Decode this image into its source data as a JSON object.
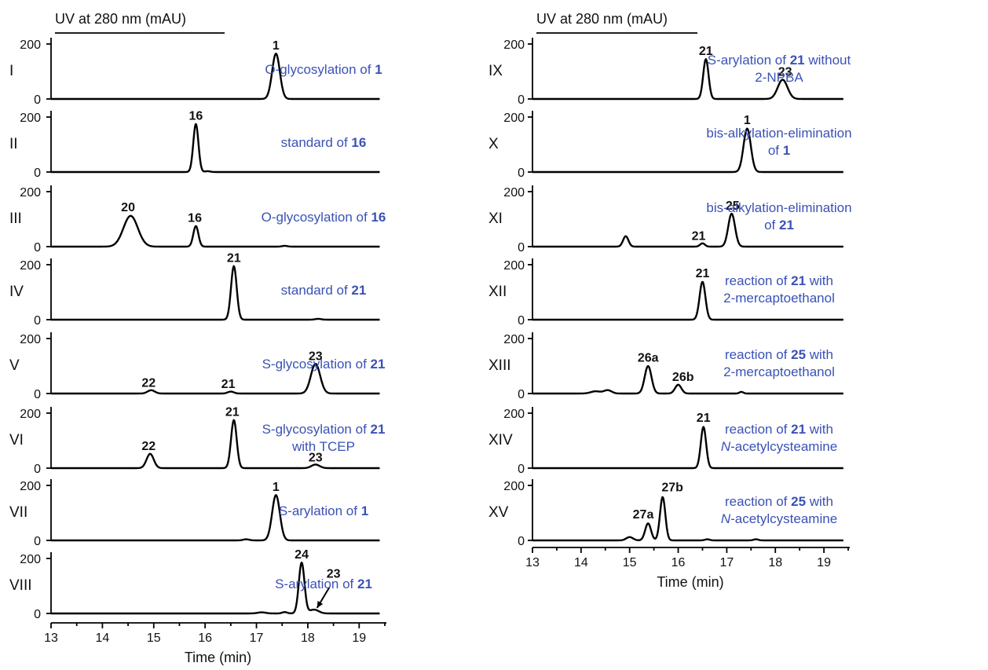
{
  "chart_data": [
    {
      "type": "line",
      "column": "left",
      "header": "UV at 280 nm (mAU)",
      "xlabel": "Time (min)",
      "xlim": [
        13,
        19.5
      ],
      "x_ticks": [
        "13",
        "14",
        "15",
        "16",
        "17",
        "18",
        "19"
      ],
      "ylim": [
        0,
        200
      ],
      "y_ticks": [
        "0",
        "200"
      ],
      "panels": [
        {
          "id": "I",
          "description": [
            {
              "t": "O-glycosylation of "
            },
            {
              "t": "1",
              "b": true
            }
          ],
          "peaks": [
            {
              "x": 17.38,
              "h": 165,
              "w": 0.075
            }
          ],
          "labels": [
            {
              "text": "1",
              "x": 17.38,
              "y": 180
            }
          ]
        },
        {
          "id": "II",
          "description": [
            {
              "t": "standard of "
            },
            {
              "t": "16",
              "b": true
            }
          ],
          "peaks": [
            {
              "x": 15.82,
              "h": 175,
              "w": 0.05
            },
            {
              "x": 16.05,
              "h": 3,
              "w": 0.05
            }
          ],
          "labels": [
            {
              "text": "16",
              "x": 15.82,
              "y": 190
            }
          ]
        },
        {
          "id": "III",
          "description": [
            {
              "t": "O-glycosylation of "
            },
            {
              "t": "16",
              "b": true
            }
          ],
          "peaks": [
            {
              "x": 14.55,
              "h": 112,
              "w": 0.14
            },
            {
              "x": 15.82,
              "h": 75,
              "w": 0.05
            },
            {
              "x": 17.55,
              "h": 3,
              "w": 0.05
            }
          ],
          "labels": [
            {
              "text": "20",
              "x": 14.5,
              "y": 128
            },
            {
              "text": "16",
              "x": 15.8,
              "y": 90
            }
          ]
        },
        {
          "id": "IV",
          "description": [
            {
              "t": "standard of "
            },
            {
              "t": "21",
              "b": true
            }
          ],
          "peaks": [
            {
              "x": 16.56,
              "h": 195,
              "w": 0.055
            },
            {
              "x": 18.2,
              "h": 3,
              "w": 0.06
            }
          ],
          "labels": [
            {
              "text": "21",
              "x": 16.56,
              "y": 210
            }
          ]
        },
        {
          "id": "V",
          "description": [
            {
              "t": "S-glycosylation of "
            },
            {
              "t": "21",
              "b": true
            }
          ],
          "peaks": [
            {
              "x": 14.95,
              "h": 12,
              "w": 0.07
            },
            {
              "x": 16.5,
              "h": 7,
              "w": 0.06
            },
            {
              "x": 18.15,
              "h": 108,
              "w": 0.09
            }
          ],
          "labels": [
            {
              "text": "22",
              "x": 14.9,
              "y": 24
            },
            {
              "text": "21",
              "x": 16.45,
              "y": 20
            },
            {
              "text": "23",
              "x": 18.15,
              "y": 122
            }
          ]
        },
        {
          "id": "VI",
          "description": [
            {
              "t": "S-glycosylation of "
            },
            {
              "t": "21",
              "b": true
            },
            {
              "t": "\nwith TCEP"
            }
          ],
          "peaks": [
            {
              "x": 14.93,
              "h": 52,
              "w": 0.07
            },
            {
              "x": 16.56,
              "h": 175,
              "w": 0.055
            },
            {
              "x": 18.15,
              "h": 13,
              "w": 0.08
            }
          ],
          "labels": [
            {
              "text": "22",
              "x": 14.9,
              "y": 66
            },
            {
              "text": "21",
              "x": 16.53,
              "y": 190
            },
            {
              "text": "23",
              "x": 18.15,
              "y": 24
            }
          ]
        },
        {
          "id": "VII",
          "description": [
            {
              "t": "S-arylation of "
            },
            {
              "t": "1",
              "b": true
            }
          ],
          "peaks": [
            {
              "x": 17.38,
              "h": 165,
              "w": 0.075
            },
            {
              "x": 16.8,
              "h": 4,
              "w": 0.06
            }
          ],
          "labels": [
            {
              "text": "1",
              "x": 17.38,
              "y": 180
            }
          ]
        },
        {
          "id": "VIII",
          "description": [
            {
              "t": "S-arylation of  "
            },
            {
              "t": "21",
              "b": true
            }
          ],
          "peaks": [
            {
              "x": 17.88,
              "h": 185,
              "w": 0.055
            },
            {
              "x": 18.12,
              "h": 14,
              "w": 0.09
            },
            {
              "x": 17.55,
              "h": 5,
              "w": 0.05
            },
            {
              "x": 17.1,
              "h": 4,
              "w": 0.08
            }
          ],
          "labels": [
            {
              "text": "24",
              "x": 17.88,
              "y": 200
            },
            {
              "text": "23",
              "x": 18.5,
              "y": 130
            }
          ],
          "arrow": {
            "from": [
              18.42,
              95
            ],
            "to": [
              18.18,
              20
            ]
          }
        }
      ]
    },
    {
      "type": "line",
      "column": "right",
      "header": "UV at 280 nm (mAU)",
      "xlabel": "Time (min)",
      "xlim": [
        13,
        19.5
      ],
      "x_ticks": [
        "13",
        "14",
        "15",
        "16",
        "17",
        "18",
        "19"
      ],
      "ylim": [
        0,
        200
      ],
      "y_ticks": [
        "0",
        "200"
      ],
      "panels": [
        {
          "id": "IX",
          "description": [
            {
              "t": "S-arylation of  "
            },
            {
              "t": "21",
              "b": true
            },
            {
              "t": " without\n2-NPBA"
            }
          ],
          "peaks": [
            {
              "x": 16.57,
              "h": 145,
              "w": 0.055
            },
            {
              "x": 18.15,
              "h": 70,
              "w": 0.1
            }
          ],
          "labels": [
            {
              "text": "21",
              "x": 16.57,
              "y": 160
            },
            {
              "text": "23",
              "x": 18.2,
              "y": 85
            }
          ]
        },
        {
          "id": "X",
          "description": [
            {
              "t": "bis-alkylation-elimination\nof "
            },
            {
              "t": "1",
              "b": true
            }
          ],
          "peaks": [
            {
              "x": 17.42,
              "h": 158,
              "w": 0.075
            }
          ],
          "labels": [
            {
              "text": "1",
              "x": 17.42,
              "y": 175
            }
          ]
        },
        {
          "id": "XI",
          "description": [
            {
              "t": "bis-alkylation-elimination\nof "
            },
            {
              "t": "21",
              "b": true
            }
          ],
          "peaks": [
            {
              "x": 14.92,
              "h": 38,
              "w": 0.055
            },
            {
              "x": 16.5,
              "h": 12,
              "w": 0.05
            },
            {
              "x": 17.1,
              "h": 120,
              "w": 0.07
            }
          ],
          "labels": [
            {
              "text": "21",
              "x": 16.42,
              "y": 24
            },
            {
              "text": "25",
              "x": 17.12,
              "y": 135
            }
          ]
        },
        {
          "id": "XII",
          "description": [
            {
              "t": "reaction of "
            },
            {
              "t": "21",
              "b": true
            },
            {
              "t": " with\n2-mercaptoethanol"
            }
          ],
          "peaks": [
            {
              "x": 16.5,
              "h": 138,
              "w": 0.06
            }
          ],
          "labels": [
            {
              "text": "21",
              "x": 16.5,
              "y": 155
            }
          ]
        },
        {
          "id": "XIII",
          "description": [
            {
              "t": "reaction of "
            },
            {
              "t": "25",
              "b": true
            },
            {
              "t": " with\n2-mercaptoethanol"
            }
          ],
          "peaks": [
            {
              "x": 15.38,
              "h": 100,
              "w": 0.07
            },
            {
              "x": 16.0,
              "h": 32,
              "w": 0.065
            },
            {
              "x": 14.3,
              "h": 8,
              "w": 0.1
            },
            {
              "x": 14.55,
              "h": 12,
              "w": 0.08
            },
            {
              "x": 17.3,
              "h": 6,
              "w": 0.04
            }
          ],
          "labels": [
            {
              "text": "26a",
              "x": 15.38,
              "y": 116
            },
            {
              "text": "26b",
              "x": 16.1,
              "y": 46
            }
          ]
        },
        {
          "id": "XIV",
          "description": [
            {
              "t": "reaction of "
            },
            {
              "t": "21",
              "b": true
            },
            {
              "t": " with\n"
            },
            {
              "t": "N",
              "i": true
            },
            {
              "t": "-acetylcysteamine"
            }
          ],
          "peaks": [
            {
              "x": 16.52,
              "h": 150,
              "w": 0.055
            }
          ],
          "labels": [
            {
              "text": "21",
              "x": 16.52,
              "y": 168
            }
          ]
        },
        {
          "id": "XV",
          "description": [
            {
              "t": "reaction of "
            },
            {
              "t": "25",
              "b": true
            },
            {
              "t": " with\n"
            },
            {
              "t": "N",
              "i": true
            },
            {
              "t": "-acetylcysteamine"
            }
          ],
          "peaks": [
            {
              "x": 15.38,
              "h": 62,
              "w": 0.06
            },
            {
              "x": 15.68,
              "h": 158,
              "w": 0.055
            },
            {
              "x": 15.0,
              "h": 12,
              "w": 0.07
            },
            {
              "x": 16.6,
              "h": 4,
              "w": 0.05
            },
            {
              "x": 17.6,
              "h": 4,
              "w": 0.05
            }
          ],
          "labels": [
            {
              "text": "27a",
              "x": 15.28,
              "y": 80
            },
            {
              "text": "27b",
              "x": 15.88,
              "y": 178
            }
          ]
        }
      ]
    }
  ]
}
